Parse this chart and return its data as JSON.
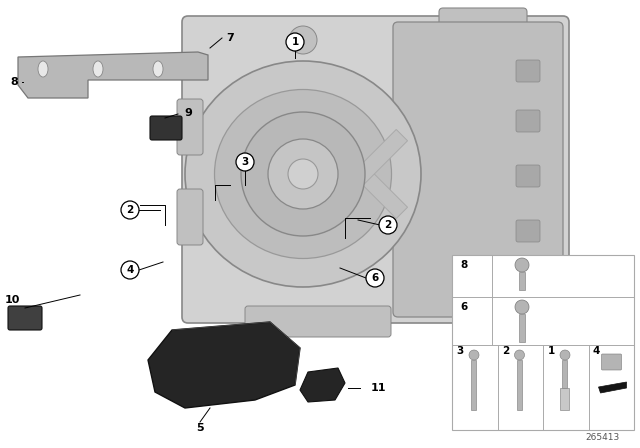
{
  "bg_color": "#ffffff",
  "fig_width": 6.4,
  "fig_height": 4.48,
  "diagram_id": "265413",
  "trans_color": "#d2d2d2",
  "trans_dark": "#b0b0b0",
  "trans_mid": "#c0c0c0",
  "bracket_color": "#b8b8b8",
  "dark_part": "#2a2a2a",
  "mid_gray": "#909090",
  "light_gray": "#d8d8d8",
  "bolt_color": "#b4b4b4",
  "table_line": "#aaaaaa",
  "callout_items": [
    1,
    2,
    3,
    4,
    5,
    6,
    7,
    8,
    9,
    10,
    11
  ],
  "circled_items": [
    1,
    2,
    3,
    4,
    6
  ],
  "bold_items": [
    5,
    7,
    8,
    9,
    10,
    11
  ]
}
